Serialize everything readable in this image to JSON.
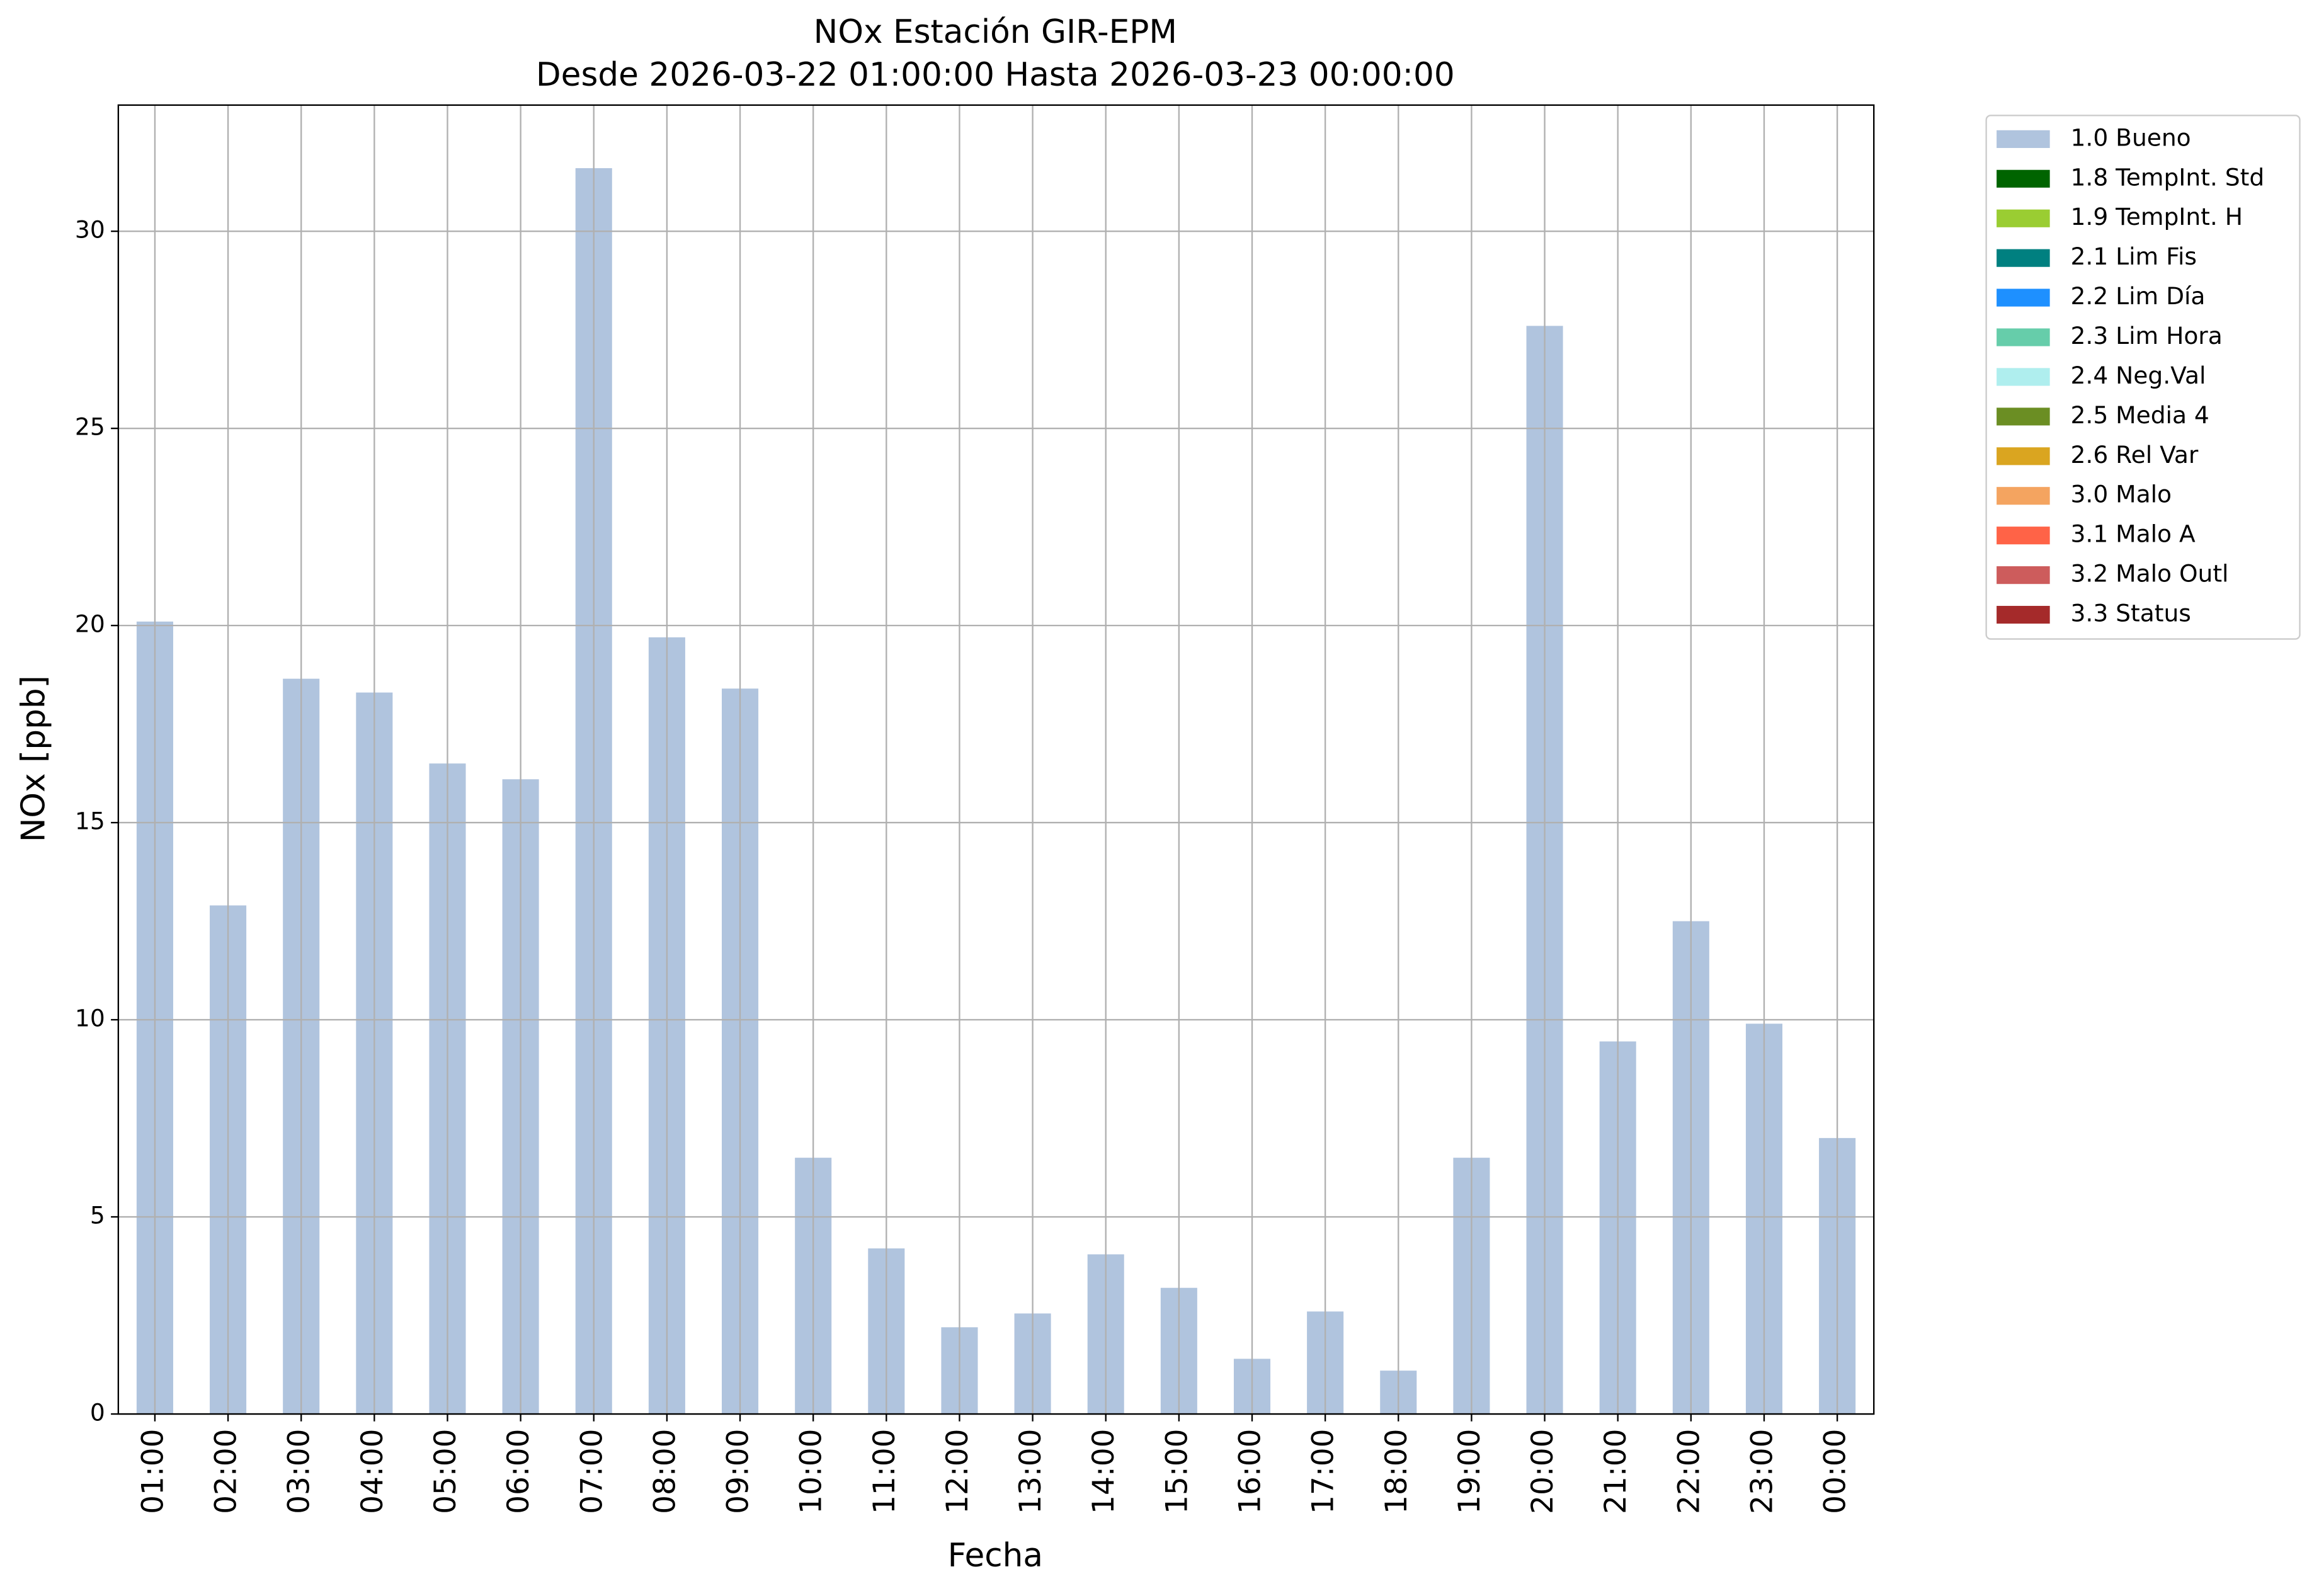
{
  "chart_data": {
    "type": "stacked_bar",
    "title": "NOx Estación GIR-EPM",
    "subtitle": "Desde 2026-03-22 01:00:00 Hasta 2026-03-23 00:00:00",
    "x_label": "Fecha",
    "y_label": "NOx [ppb]",
    "categories": [
      "01:00",
      "02:00",
      "03:00",
      "04:00",
      "05:00",
      "06:00",
      "07:00",
      "08:00",
      "09:00",
      "10:00",
      "11:00",
      "12:00",
      "13:00",
      "14:00",
      "15:00",
      "16:00",
      "17:00",
      "18:00",
      "19:00",
      "20:00",
      "21:00",
      "22:00",
      "23:00",
      "00:00"
    ],
    "series": [
      {
        "name": "1.0 Bueno",
        "color": "#b0c4de",
        "values": [
          20.1,
          12.9,
          18.65,
          18.3,
          16.5,
          16.1,
          31.6,
          19.7,
          18.4,
          6.5,
          4.2,
          2.2,
          2.55,
          4.05,
          3.2,
          1.4,
          2.6,
          1.1,
          6.5,
          27.6,
          9.45,
          12.5,
          9.9,
          7.0
        ]
      },
      {
        "name": "1.8 TempInt. Std",
        "color": "#006400",
        "values": [
          0,
          0,
          0,
          0,
          0,
          0,
          0,
          0,
          0,
          0,
          0,
          0,
          0,
          0,
          0,
          0,
          0,
          0,
          0,
          0,
          0,
          0,
          0,
          0
        ]
      },
      {
        "name": "1.9 TempInt. H",
        "color": "#9acd32",
        "values": [
          0,
          0,
          0,
          0,
          0,
          0,
          0,
          0,
          0,
          0,
          0,
          0,
          0,
          0,
          0,
          0,
          0,
          0,
          0,
          0,
          0,
          0,
          0,
          0
        ]
      },
      {
        "name": "2.1 Lim Fis",
        "color": "#008080",
        "values": [
          0,
          0,
          0,
          0,
          0,
          0,
          0,
          0,
          0,
          0,
          0,
          0,
          0,
          0,
          0,
          0,
          0,
          0,
          0,
          0,
          0,
          0,
          0,
          0
        ]
      },
      {
        "name": "2.2 Lim Día",
        "color": "#1e90ff",
        "values": [
          0,
          0,
          0,
          0,
          0,
          0,
          0,
          0,
          0,
          0,
          0,
          0,
          0,
          0,
          0,
          0,
          0,
          0,
          0,
          0,
          0,
          0,
          0,
          0
        ]
      },
      {
        "name": "2.3 Lim Hora",
        "color": "#66cdaa",
        "values": [
          0,
          0,
          0,
          0,
          0,
          0,
          0,
          0,
          0,
          0,
          0,
          0,
          0,
          0,
          0,
          0,
          0,
          0,
          0,
          0,
          0,
          0,
          0,
          0
        ]
      },
      {
        "name": "2.4 Neg.Val",
        "color": "#afeeee",
        "values": [
          0,
          0,
          0,
          0,
          0,
          0,
          0,
          0,
          0,
          0,
          0,
          0,
          0,
          0,
          0,
          0,
          0,
          0,
          0,
          0,
          0,
          0,
          0,
          0
        ]
      },
      {
        "name": "2.5 Media 4",
        "color": "#6b8e23",
        "values": [
          0,
          0,
          0,
          0,
          0,
          0,
          0,
          0,
          0,
          0,
          0,
          0,
          0,
          0,
          0,
          0,
          0,
          0,
          0,
          0,
          0,
          0,
          0,
          0
        ]
      },
      {
        "name": "2.6 Rel Var",
        "color": "#daa520",
        "values": [
          0,
          0,
          0,
          0,
          0,
          0,
          0,
          0,
          0,
          0,
          0,
          0,
          0,
          0,
          0,
          0,
          0,
          0,
          0,
          0,
          0,
          0,
          0,
          0
        ]
      },
      {
        "name": "3.0 Malo",
        "color": "#f4a460",
        "values": [
          0,
          0,
          0,
          0,
          0,
          0,
          0,
          0,
          0,
          0,
          0,
          0,
          0,
          0,
          0,
          0,
          0,
          0,
          0,
          0,
          0,
          0,
          0,
          0
        ]
      },
      {
        "name": "3.1 Malo A",
        "color": "#ff6347",
        "values": [
          0,
          0,
          0,
          0,
          0,
          0,
          0,
          0,
          0,
          0,
          0,
          0,
          0,
          0,
          0,
          0,
          0,
          0,
          0,
          0,
          0,
          0,
          0,
          0
        ]
      },
      {
        "name": "3.2 Malo Outl",
        "color": "#cd5c5c",
        "values": [
          0,
          0,
          0,
          0,
          0,
          0,
          0,
          0,
          0,
          0,
          0,
          0,
          0,
          0,
          0,
          0,
          0,
          0,
          0,
          0,
          0,
          0,
          0,
          0
        ]
      },
      {
        "name": "3.3 Status",
        "color": "#a52a2a",
        "values": [
          0,
          0,
          0,
          0,
          0,
          0,
          0,
          0,
          0,
          0,
          0,
          0,
          0,
          0,
          0,
          0,
          0,
          0,
          0,
          0,
          0,
          0,
          0,
          0
        ]
      }
    ],
    "ylim": [
      0,
      33.2
    ],
    "yticks": [
      0,
      5,
      10,
      15,
      20,
      25,
      30
    ],
    "grid": true,
    "legend": "outside-right"
  }
}
